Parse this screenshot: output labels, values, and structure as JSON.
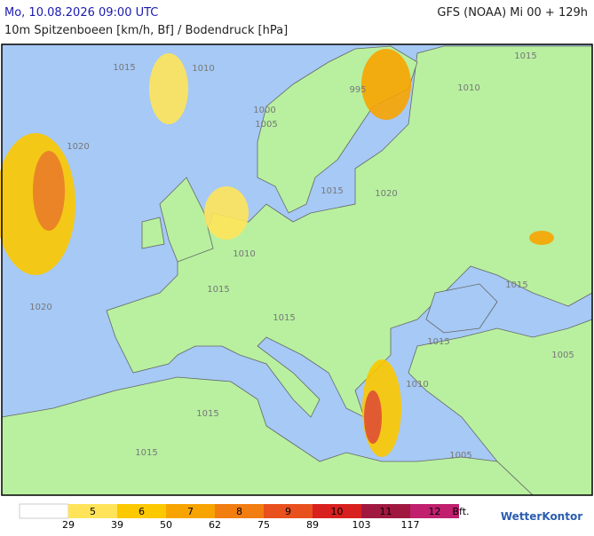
{
  "header": {
    "datetime": "Mo, 10.08.2026 09:00 UTC",
    "model": "GFS (NOAA) Mi 00 + 129h",
    "subtitle": "10m Spitzenboeen [km/h, Bf] / Bodendruck [hPa]"
  },
  "isobar_labels": [
    1015,
    1010,
    1000,
    1005,
    995,
    1015,
    1010,
    1020,
    1015,
    1020,
    1010,
    1015,
    1015,
    1020,
    1015,
    1015,
    1005,
    1010,
    1015,
    1015,
    1005
  ],
  "legend": {
    "below_color": "#ffffff",
    "classes": [
      {
        "bft": 5,
        "color": "#ffe45a"
      },
      {
        "bft": 6,
        "color": "#fcc800"
      },
      {
        "bft": 7,
        "color": "#f8a400"
      },
      {
        "bft": 8,
        "color": "#f27d10"
      },
      {
        "bft": 9,
        "color": "#e8501e"
      },
      {
        "bft": 10,
        "color": "#d8201e"
      },
      {
        "bft": 11,
        "color": "#a01840"
      },
      {
        "bft": 12,
        "color": "#c0206e"
      }
    ],
    "kmh": [
      29,
      39,
      50,
      62,
      75,
      89,
      103,
      117
    ],
    "unit": "Bft."
  },
  "logo": "WetterKontor"
}
